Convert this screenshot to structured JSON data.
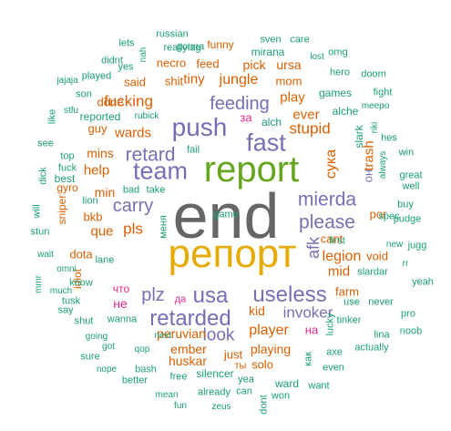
{
  "palette": {
    "teal": "#1b9e77",
    "orange": "#d95f02",
    "purple": "#7570b3",
    "pink": "#e7298a",
    "green": "#66a61e",
    "gold": "#e6ab02",
    "gray": "#666666"
  },
  "words": [
    {
      "text": "end",
      "color": "gray",
      "size": 70
    },
    {
      "text": "репорт",
      "color": "gold",
      "size": 44
    },
    {
      "text": "report",
      "color": "green",
      "size": 40
    },
    {
      "text": "push",
      "color": "purple",
      "size": 28
    },
    {
      "text": "team",
      "color": "purple",
      "size": 27
    },
    {
      "text": "fast",
      "color": "purple",
      "size": 27
    },
    {
      "text": "usa",
      "color": "purple",
      "size": 24
    },
    {
      "text": "useless",
      "color": "purple",
      "size": 24
    },
    {
      "text": "retarded",
      "color": "purple",
      "size": 24
    },
    {
      "text": "please",
      "color": "purple",
      "size": 21
    },
    {
      "text": "mierda",
      "color": "purple",
      "size": 21
    },
    {
      "text": "retard",
      "color": "purple",
      "size": 21
    },
    {
      "text": "feeding",
      "color": "purple",
      "size": 20
    },
    {
      "text": "carry",
      "color": "purple",
      "size": 20
    },
    {
      "text": "plz",
      "color": "purple",
      "size": 20
    },
    {
      "text": "look",
      "color": "purple",
      "size": 19
    },
    {
      "text": "afk",
      "color": "purple",
      "size": 18
    },
    {
      "text": "invoker",
      "color": "purple",
      "size": 17
    },
    {
      "text": "fucking",
      "color": "orange",
      "size": 17
    },
    {
      "text": "pls",
      "color": "orange",
      "size": 17
    },
    {
      "text": "stupid",
      "color": "orange",
      "size": 17
    },
    {
      "text": "jungle",
      "color": "orange",
      "size": 16
    },
    {
      "text": "legion",
      "color": "orange",
      "size": 16
    },
    {
      "text": "player",
      "color": "orange",
      "size": 16
    },
    {
      "text": "сука",
      "color": "orange",
      "size": 16
    },
    {
      "text": "tiny",
      "color": "orange",
      "size": 15
    },
    {
      "text": "wards",
      "color": "orange",
      "size": 15
    },
    {
      "text": "help",
      "color": "orange",
      "size": 15
    },
    {
      "text": "que",
      "color": "orange",
      "size": 15
    },
    {
      "text": "ever",
      "color": "orange",
      "size": 15
    },
    {
      "text": "play",
      "color": "orange",
      "size": 15
    },
    {
      "text": "trash",
      "color": "orange",
      "size": 15
    },
    {
      "text": "mid",
      "color": "orange",
      "size": 15
    },
    {
      "text": "kid",
      "color": "orange",
      "size": 14
    },
    {
      "text": "playing",
      "color": "orange",
      "size": 14
    },
    {
      "text": "huskar",
      "color": "orange",
      "size": 14
    },
    {
      "text": "ember",
      "color": "orange",
      "size": 14
    },
    {
      "text": "peruvian",
      "color": "orange",
      "size": 14
    },
    {
      "text": "mins",
      "color": "orange",
      "size": 14
    },
    {
      "text": "min",
      "color": "orange",
      "size": 14
    },
    {
      "text": "pick",
      "color": "orange",
      "size": 14
    },
    {
      "text": "ursa",
      "color": "orange",
      "size": 14
    },
    {
      "text": "mom",
      "color": "orange",
      "size": 13
    },
    {
      "text": "shit",
      "color": "orange",
      "size": 13
    },
    {
      "text": "said",
      "color": "orange",
      "size": 13
    },
    {
      "text": "done",
      "color": "orange",
      "size": 13
    },
    {
      "text": "guy",
      "color": "orange",
      "size": 13
    },
    {
      "text": "necro",
      "color": "orange",
      "size": 13
    },
    {
      "text": "feed",
      "color": "orange",
      "size": 13
    },
    {
      "text": "funny",
      "color": "orange",
      "size": 12
    },
    {
      "text": "cant",
      "color": "orange",
      "size": 13
    },
    {
      "text": "void",
      "color": "orange",
      "size": 13
    },
    {
      "text": "por",
      "color": "orange",
      "size": 13
    },
    {
      "text": "farm",
      "color": "orange",
      "size": 13
    },
    {
      "text": "bkb",
      "color": "orange",
      "size": 13
    },
    {
      "text": "dota",
      "color": "orange",
      "size": 13
    },
    {
      "text": "idiot",
      "color": "orange",
      "size": 12
    },
    {
      "text": "gyro",
      "color": "orange",
      "size": 12
    },
    {
      "text": "sniper",
      "color": "orange",
      "size": 12
    },
    {
      "text": "solo",
      "color": "orange",
      "size": 13
    },
    {
      "text": "just",
      "color": "orange",
      "size": 13
    },
    {
      "text": "ты",
      "color": "orange",
      "size": 11
    },
    {
      "text": "не",
      "color": "pink",
      "size": 14
    },
    {
      "text": "за",
      "color": "pink",
      "size": 13
    },
    {
      "text": "на",
      "color": "pink",
      "size": 13
    },
    {
      "text": "да",
      "color": "pink",
      "size": 11
    },
    {
      "text": "что",
      "color": "pink",
      "size": 12
    },
    {
      "text": "он",
      "color": "purple",
      "size": 13
    },
    {
      "text": "alche",
      "color": "teal",
      "size": 12
    },
    {
      "text": "alch",
      "color": "teal",
      "size": 12
    },
    {
      "text": "slark",
      "color": "teal",
      "size": 12
    },
    {
      "text": "reported",
      "color": "teal",
      "size": 12
    },
    {
      "text": "games",
      "color": "teal",
      "size": 12
    },
    {
      "text": "mirana",
      "color": "teal",
      "size": 12
    },
    {
      "text": "gonna",
      "color": "teal",
      "size": 11
    },
    {
      "text": "russian",
      "color": "teal",
      "size": 11
    },
    {
      "text": "reallylag",
      "color": "teal",
      "size": 11
    },
    {
      "text": "sven",
      "color": "teal",
      "size": 11
    },
    {
      "text": "care",
      "color": "teal",
      "size": 11
    },
    {
      "text": "lets",
      "color": "teal",
      "size": 11
    },
    {
      "text": "omg",
      "color": "teal",
      "size": 11
    },
    {
      "text": "lost",
      "color": "teal",
      "size": 10
    },
    {
      "text": "nah",
      "color": "teal",
      "size": 10
    },
    {
      "text": "didnt",
      "color": "teal",
      "size": 11
    },
    {
      "text": "yes",
      "color": "teal",
      "size": 11
    },
    {
      "text": "hero",
      "color": "teal",
      "size": 11
    },
    {
      "text": "played",
      "color": "teal",
      "size": 11
    },
    {
      "text": "doom",
      "color": "teal",
      "size": 11
    },
    {
      "text": "jajaja",
      "color": "teal",
      "size": 10
    },
    {
      "text": "son",
      "color": "teal",
      "size": 11
    },
    {
      "text": "fight",
      "color": "teal",
      "size": 11
    },
    {
      "text": "meepo",
      "color": "teal",
      "size": 10
    },
    {
      "text": "stfu",
      "color": "teal",
      "size": 10
    },
    {
      "text": "like",
      "color": "teal",
      "size": 11
    },
    {
      "text": "rubick",
      "color": "teal",
      "size": 10
    },
    {
      "text": "see",
      "color": "teal",
      "size": 11
    },
    {
      "text": "top",
      "color": "teal",
      "size": 11
    },
    {
      "text": "fail",
      "color": "teal",
      "size": 11
    },
    {
      "text": "riki",
      "color": "teal",
      "size": 10
    },
    {
      "text": "hes",
      "color": "teal",
      "size": 11
    },
    {
      "text": "win",
      "color": "teal",
      "size": 11
    },
    {
      "text": "fuck",
      "color": "teal",
      "size": 11
    },
    {
      "text": "best",
      "color": "teal",
      "size": 12
    },
    {
      "text": "dick",
      "color": "teal",
      "size": 11
    },
    {
      "text": "always",
      "color": "teal",
      "size": 10
    },
    {
      "text": "great",
      "color": "teal",
      "size": 11
    },
    {
      "text": "well",
      "color": "teal",
      "size": 11
    },
    {
      "text": "bad",
      "color": "teal",
      "size": 11
    },
    {
      "text": "take",
      "color": "teal",
      "size": 11
    },
    {
      "text": "lion",
      "color": "teal",
      "size": 11
    },
    {
      "text": "will",
      "color": "teal",
      "size": 11
    },
    {
      "text": "buy",
      "color": "teal",
      "size": 11
    },
    {
      "text": "spec",
      "color": "teal",
      "size": 11
    },
    {
      "text": "pudge",
      "color": "teal",
      "size": 11
    },
    {
      "text": "stun",
      "color": "teal",
      "size": 11
    },
    {
      "text": "меня",
      "color": "teal",
      "size": 11
    },
    {
      "text": "first",
      "color": "teal",
      "size": 11
    },
    {
      "text": "new",
      "color": "teal",
      "size": 10
    },
    {
      "text": "jugg",
      "color": "teal",
      "size": 11
    },
    {
      "text": "wait",
      "color": "teal",
      "size": 10
    },
    {
      "text": "omni",
      "color": "teal",
      "size": 10
    },
    {
      "text": "know",
      "color": "teal",
      "size": 11
    },
    {
      "text": "lane",
      "color": "teal",
      "size": 11
    },
    {
      "text": "rr",
      "color": "teal",
      "size": 10
    },
    {
      "text": "yeah",
      "color": "teal",
      "size": 11
    },
    {
      "text": "mmr",
      "color": "teal",
      "size": 10
    },
    {
      "text": "much",
      "color": "teal",
      "size": 10
    },
    {
      "text": "slardar",
      "color": "teal",
      "size": 11
    },
    {
      "text": "never",
      "color": "teal",
      "size": 11
    },
    {
      "text": "tusk",
      "color": "teal",
      "size": 11
    },
    {
      "text": "use",
      "color": "teal",
      "size": 11
    },
    {
      "text": "pro",
      "color": "teal",
      "size": 11
    },
    {
      "text": "say",
      "color": "teal",
      "size": 11
    },
    {
      "text": "shut",
      "color": "teal",
      "size": 11
    },
    {
      "text": "wanna",
      "color": "teal",
      "size": 11
    },
    {
      "text": "tinker",
      "color": "teal",
      "size": 11
    },
    {
      "text": "noob",
      "color": "teal",
      "size": 11
    },
    {
      "text": "going",
      "color": "teal",
      "size": 10
    },
    {
      "text": "next",
      "color": "teal",
      "size": 10
    },
    {
      "text": "lina",
      "color": "teal",
      "size": 11
    },
    {
      "text": "sure",
      "color": "teal",
      "size": 11
    },
    {
      "text": "got",
      "color": "teal",
      "size": 10
    },
    {
      "text": "qop",
      "color": "teal",
      "size": 10
    },
    {
      "text": "lucky",
      "color": "teal",
      "size": 11
    },
    {
      "text": "axe",
      "color": "teal",
      "size": 11
    },
    {
      "text": "actually",
      "color": "teal",
      "size": 11
    },
    {
      "text": "nope",
      "color": "teal",
      "size": 10
    },
    {
      "text": "bash",
      "color": "teal",
      "size": 11
    },
    {
      "text": "как",
      "color": "teal",
      "size": 11
    },
    {
      "text": "even",
      "color": "teal",
      "size": 11
    },
    {
      "text": "better",
      "color": "teal",
      "size": 11
    },
    {
      "text": "free",
      "color": "teal",
      "size": 11
    },
    {
      "text": "silencer",
      "color": "teal",
      "size": 12
    },
    {
      "text": "yea",
      "color": "teal",
      "size": 11
    },
    {
      "text": "ward",
      "color": "teal",
      "size": 12
    },
    {
      "text": "want",
      "color": "teal",
      "size": 11
    },
    {
      "text": "mean",
      "color": "teal",
      "size": 10
    },
    {
      "text": "already",
      "color": "teal",
      "size": 11
    },
    {
      "text": "can",
      "color": "teal",
      "size": 11
    },
    {
      "text": "won",
      "color": "teal",
      "size": 11
    },
    {
      "text": "dont",
      "color": "teal",
      "size": 11
    },
    {
      "text": "fun",
      "color": "teal",
      "size": 10
    },
    {
      "text": "zeus",
      "color": "teal",
      "size": 10
    },
    {
      "text": "game",
      "color": "teal",
      "size": 11
    }
  ]
}
